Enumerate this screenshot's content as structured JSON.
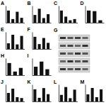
{
  "chart_data": [
    {
      "type": "bar",
      "title": "A",
      "categories": [
        null,
        null,
        null,
        null
      ],
      "values": [
        1,
        0.3,
        0.9,
        0.4
      ],
      "color": "#111111",
      "ylim": [
        0,
        1.4
      ],
      "tick_labels": false
    },
    {
      "type": "bar",
      "title": "B",
      "categories": [
        null,
        null,
        null,
        null
      ],
      "values": [
        1,
        1.8,
        0.6,
        1.1
      ],
      "color": "#111111",
      "ylim": [
        0,
        2.2
      ],
      "tick_labels": false
    },
    {
      "type": "bar",
      "title": "C",
      "categories": [
        null,
        null,
        null,
        null
      ],
      "values": [
        1,
        0.5,
        0.2,
        0.3
      ],
      "color": "#111111",
      "ylim": [
        0,
        1.4
      ],
      "tick_labels": false
    },
    {
      "type": "bar",
      "title": "D",
      "categories": [
        null,
        null,
        null
      ],
      "values": [
        1,
        0.95,
        0.2
      ],
      "color": "#111111",
      "ylim": [
        0,
        1.4
      ],
      "tick_labels": false
    },
    {
      "type": "bar",
      "title": "E",
      "categories": [
        null,
        null,
        null,
        null
      ],
      "values": [
        1,
        2.5,
        0.8,
        2.3
      ],
      "color": "#111111",
      "ylim": [
        0,
        3
      ],
      "tick_labels": false
    },
    {
      "type": "bar",
      "title": "F",
      "categories": [
        null,
        null,
        null,
        null
      ],
      "values": [
        1,
        0.4,
        0.9,
        0.5
      ],
      "color": "#111111",
      "ylim": [
        0,
        1.4
      ],
      "tick_labels": false
    },
    {
      "type": "bar",
      "title": "H",
      "categories": [
        null,
        null,
        null
      ],
      "values": [
        1,
        0.3,
        0.6
      ],
      "color": "#111111",
      "ylim": [
        0,
        1.4
      ],
      "tick_labels": false
    },
    {
      "type": "bar",
      "title": "I",
      "categories": [
        null,
        null,
        null
      ],
      "values": [
        1,
        1.6,
        0.7
      ],
      "color": "#111111",
      "ylim": [
        0,
        2
      ],
      "tick_labels": false
    },
    {
      "type": "bar",
      "title": "J",
      "categories": [
        null,
        null,
        null,
        null
      ],
      "values": [
        1,
        1.5,
        0.5,
        0.4
      ],
      "color": "#111111",
      "ylim": [
        0,
        2
      ],
      "tick_labels": false
    },
    {
      "type": "bar",
      "title": "K",
      "categories": [
        null,
        null,
        null,
        null
      ],
      "values": [
        1,
        0.3,
        1.1,
        0.6
      ],
      "color": "#111111",
      "ylim": [
        0,
        1.4
      ],
      "tick_labels": false
    },
    {
      "type": "bar",
      "title": "L",
      "categories": [
        null,
        null,
        null,
        null
      ],
      "values": [
        1,
        2.2,
        0.5,
        1.8
      ],
      "color": "#111111",
      "ylim": [
        0,
        2.6
      ],
      "tick_labels": false
    },
    {
      "type": "bar",
      "title": "M",
      "categories": [
        null,
        null,
        null,
        null
      ],
      "values": [
        1,
        1.9,
        0.6,
        1.7
      ],
      "color": "#111111",
      "ylim": [
        0,
        2.4
      ],
      "tick_labels": false
    }
  ],
  "blot": {
    "title": "G"
  }
}
